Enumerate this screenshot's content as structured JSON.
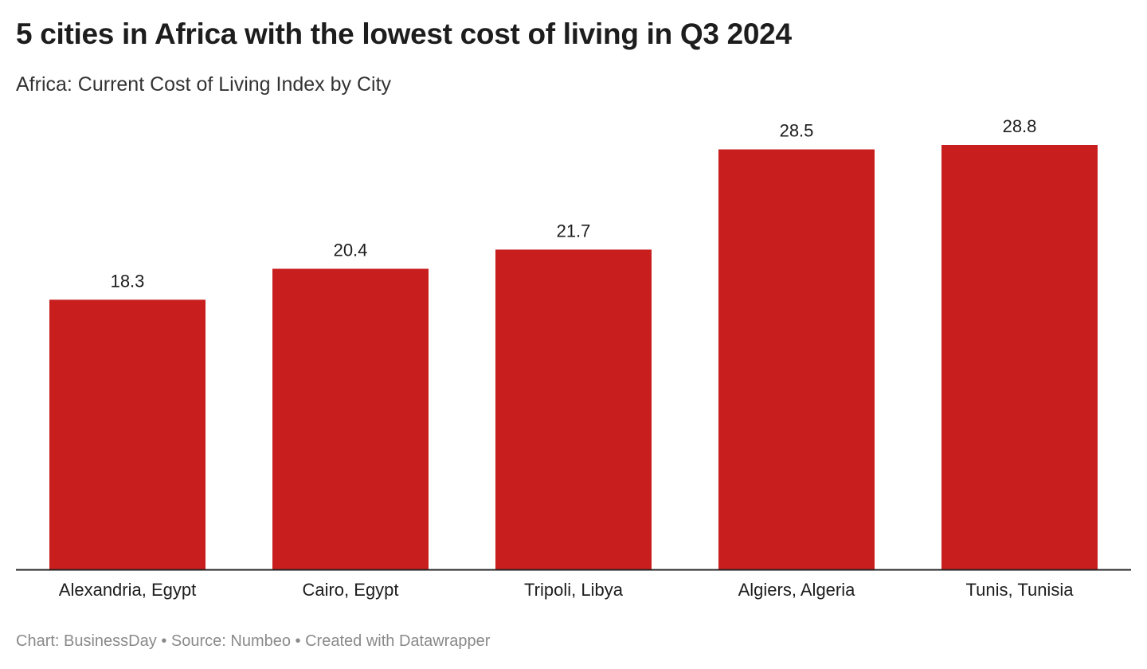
{
  "title": "5 cities in Africa with the lowest cost of living in Q3 2024",
  "subtitle": "Africa: Current Cost of Living Index by City",
  "footer": {
    "chart_credit": "Chart: BusinessDay",
    "separator": "•",
    "source": "Source: Numbeo",
    "created_with": "Created with Datawrapper"
  },
  "chart_data": {
    "type": "bar",
    "title": "5 cities in Africa with the lowest cost of living in Q3 2024",
    "subtitle": "Africa: Current Cost of Living Index by City",
    "categories": [
      "Alexandria, Egypt",
      "Cairo, Egypt",
      "Tripoli, Libya",
      "Algiers, Algeria",
      "Tunis, Tunisia"
    ],
    "values": [
      18.3,
      20.4,
      21.7,
      28.5,
      28.8
    ],
    "value_labels": [
      "18.3",
      "20.4",
      "21.7",
      "28.5",
      "28.8"
    ],
    "xlabel": "",
    "ylabel": "",
    "ylim": [
      0,
      28.8
    ],
    "grid": false,
    "y_axis_visible": false,
    "bar_color": "#c81e1e"
  }
}
